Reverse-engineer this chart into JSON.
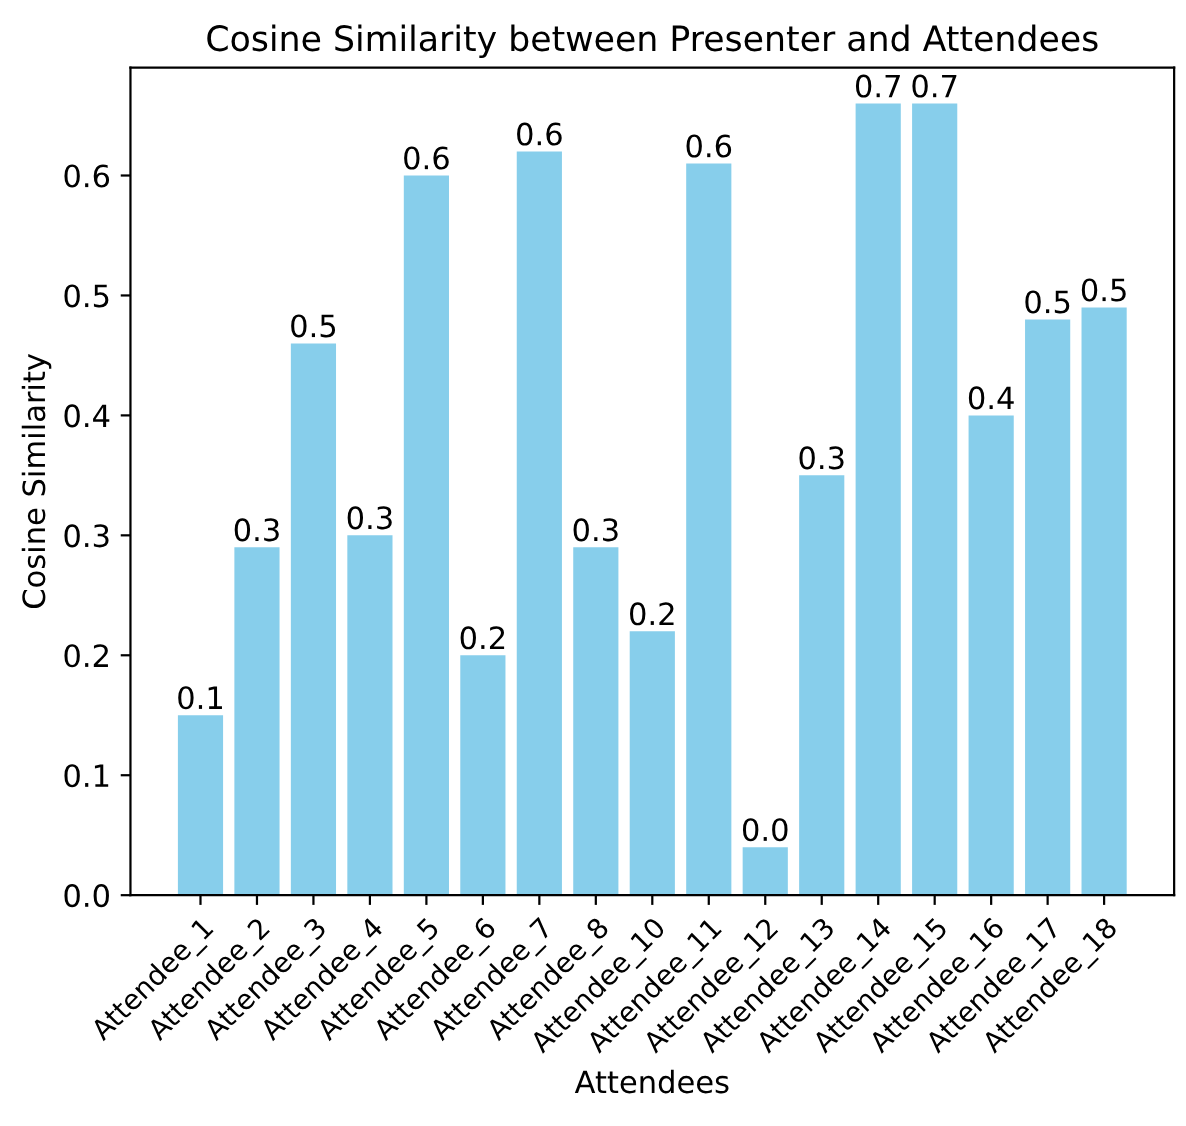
{
  "chart_data": {
    "type": "bar",
    "title": "Cosine Similarity between Presenter and Attendees",
    "xlabel": "Attendees",
    "ylabel": "Cosine Similarity",
    "categories": [
      "Attendee_1",
      "Attendee_2",
      "Attendee_3",
      "Attendee_4",
      "Attendee_5",
      "Attendee_6",
      "Attendee_7",
      "Attendee_8",
      "Attendee_10",
      "Attendee_11",
      "Attendee_12",
      "Attendee_13",
      "Attendee_14",
      "Attendee_15",
      "Attendee_16",
      "Attendee_17",
      "Attendee_18"
    ],
    "values": [
      0.15,
      0.29,
      0.46,
      0.3,
      0.6,
      0.2,
      0.62,
      0.29,
      0.22,
      0.61,
      0.04,
      0.35,
      0.66,
      0.66,
      0.4,
      0.48,
      0.49
    ],
    "value_labels": [
      "0.1",
      "0.3",
      "0.5",
      "0.3",
      "0.6",
      "0.2",
      "0.6",
      "0.3",
      "0.2",
      "0.6",
      "0.0",
      "0.3",
      "0.7",
      "0.7",
      "0.4",
      "0.5",
      "0.5"
    ],
    "color": "#87ceeb",
    "ylim": [
      0,
      0.69
    ],
    "yticks": [
      {
        "value": 0,
        "label": "0.0"
      },
      0.1,
      0.2,
      0.3,
      0.4,
      0.5,
      0.6
    ],
    "grid": false,
    "legend": false
  }
}
